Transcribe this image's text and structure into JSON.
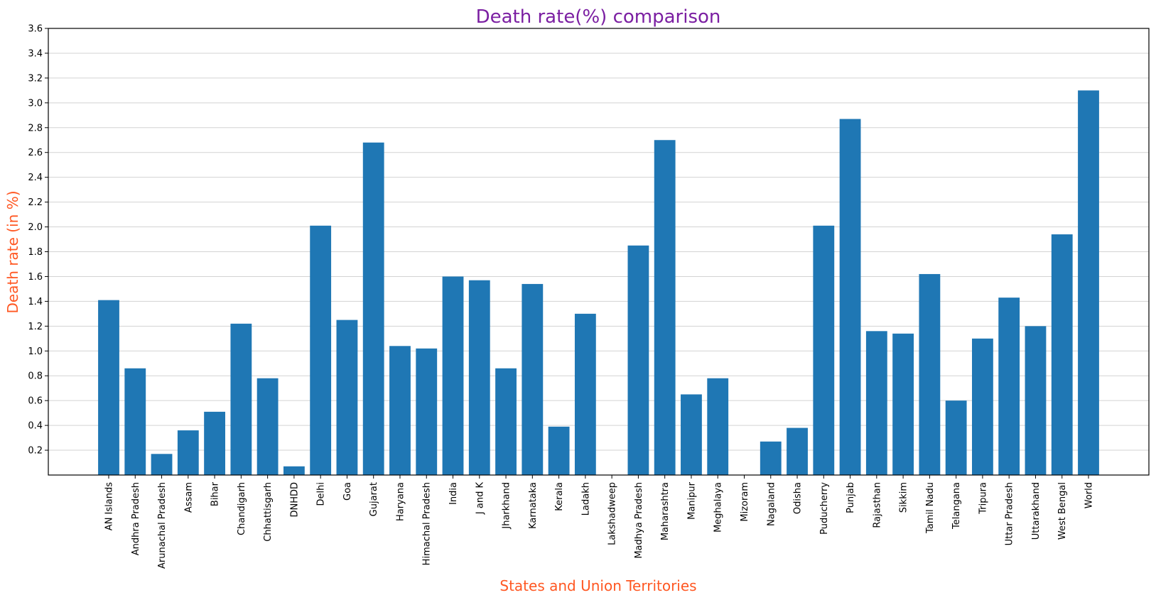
{
  "chart_data": {
    "type": "bar",
    "title": "Death rate(%) comparison",
    "xlabel": "States and Union Territories",
    "ylabel": "Death rate (in %)",
    "ylim": [
      0,
      3.6
    ],
    "yticks": [
      "0.2",
      "0.4",
      "0.6",
      "0.8",
      "1.0",
      "1.2",
      "1.4",
      "1.6",
      "1.8",
      "2.0",
      "2.2",
      "2.4",
      "2.6",
      "2.8",
      "3.0",
      "3.2",
      "3.4",
      "3.6"
    ],
    "grid": "horizontal",
    "categories": [
      "AN Islands",
      "Andhra Pradesh",
      "Arunachal Pradesh",
      "Assam",
      "Bihar",
      "Chandigarh",
      "Chhattisgarh",
      "DNHDD",
      "Delhi",
      "Goa",
      "Gujarat",
      "Haryana",
      "Himachal Pradesh",
      "India",
      "J and K",
      "Jharkhand",
      "Karnataka",
      "Kerala",
      "Ladakh",
      "Lakshadweep",
      "Madhya Pradesh",
      "Maharashtra",
      "Manipur",
      "Meghalaya",
      "Mizoram",
      "Nagaland",
      "Odisha",
      "Puducherry",
      "Punjab",
      "Rajasthan",
      "Sikkim",
      "Tamil Nadu",
      "Telangana",
      "Tripura",
      "Uttar Pradesh",
      "Uttarakhand",
      "West Bengal",
      "World"
    ],
    "values": [
      1.41,
      0.86,
      0.17,
      0.36,
      0.51,
      1.22,
      0.78,
      0.07,
      2.01,
      1.25,
      2.68,
      1.04,
      1.02,
      1.6,
      1.57,
      0.86,
      1.54,
      0.39,
      1.3,
      0.0,
      1.85,
      2.7,
      0.65,
      0.78,
      0.0,
      0.27,
      0.38,
      2.01,
      2.87,
      1.16,
      1.14,
      1.62,
      0.6,
      1.1,
      1.43,
      1.2,
      1.94,
      3.1
    ],
    "colors": {
      "bar": "#1f77b4",
      "title": "#7b1fa2",
      "axis_labels": "#ff5722",
      "grid": "#d3d3d3"
    }
  }
}
